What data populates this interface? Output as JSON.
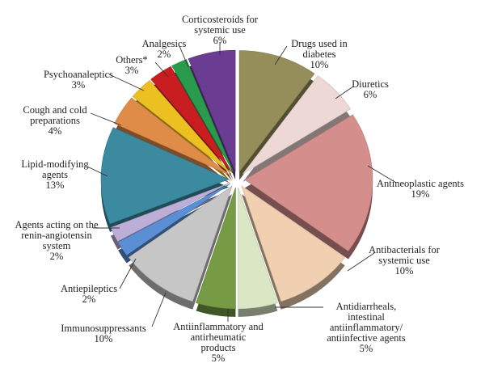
{
  "chart_data": {
    "type": "pie",
    "title": "",
    "exploded": true,
    "three_d": true,
    "start_angle_deg": 0,
    "direction": "clockwise",
    "legend": "none",
    "slices": [
      {
        "lines": [
          "Drugs used in",
          "diabetes",
          "10%"
        ],
        "value": 10,
        "color": "#958e5a"
      },
      {
        "lines": [
          "Diuretics",
          "6%"
        ],
        "value": 6,
        "color": "#eed8d6"
      },
      {
        "lines": [
          "Antineoplastic agents",
          "19%"
        ],
        "value": 19,
        "color": "#d48e8c"
      },
      {
        "lines": [
          "Antibacterials for",
          "systemic use",
          "10%"
        ],
        "value": 10,
        "color": "#f0d0b1"
      },
      {
        "lines": [
          "Antidiarrheals,",
          "intestinal",
          "antiinflammatory/",
          "antiinfective agents",
          "5%"
        ],
        "value": 5,
        "color": "#dbe7c4"
      },
      {
        "lines": [
          "Antiinflammatory and",
          "antirheumatic",
          "products",
          "5%"
        ],
        "value": 5,
        "color": "#779a45"
      },
      {
        "lines": [
          "Immunosuppressants",
          "10%"
        ],
        "value": 10,
        "color": "#c6c6c6"
      },
      {
        "lines": [
          "Antiepileptics",
          "2%"
        ],
        "value": 2,
        "color": "#5b8fd5"
      },
      {
        "lines": [
          "Agents acting on the",
          "renin-angiotensin",
          "system",
          "2%"
        ],
        "value": 2,
        "color": "#bcaed6"
      },
      {
        "lines": [
          "Lipid-modifying",
          "agents",
          "13%"
        ],
        "value": 13,
        "color": "#3b8aa0"
      },
      {
        "lines": [
          "Cough and cold",
          "preparations",
          "4%"
        ],
        "value": 4,
        "color": "#e08c49"
      },
      {
        "lines": [
          "Psychoanaleptics",
          "3%"
        ],
        "value": 3,
        "color": "#ecc020"
      },
      {
        "lines": [
          "Others*",
          "3%"
        ],
        "value": 3,
        "color": "#c81e22"
      },
      {
        "lines": [
          "Analgesics",
          "2%"
        ],
        "value": 2,
        "color": "#2a9a4c"
      },
      {
        "lines": [
          "Corticosteroids for",
          "systemic use",
          "6%"
        ],
        "value": 6,
        "color": "#6b3d92"
      }
    ]
  }
}
